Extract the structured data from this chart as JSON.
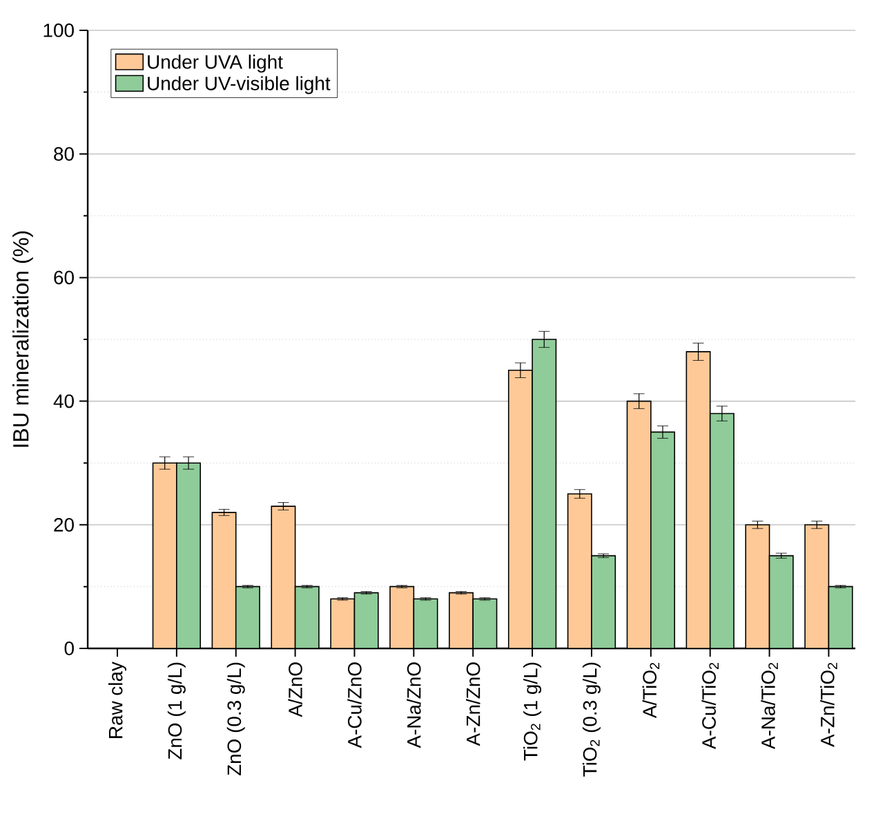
{
  "chart_data": {
    "type": "bar",
    "ylabel": "IBU mineralization (%)",
    "categories": [
      "Raw clay",
      "ZnO (1 g/L)",
      "ZnO (0.3 g/L)",
      "A/ZnO",
      "A-Cu/ZnO",
      "A-Na/ZnO",
      "A-Zn/ZnO",
      "TiO$_{2}$ (1 g/L)",
      "TiO$_{2}$ (0.3 g/L)",
      "A/TiO$_{2}$",
      "A-Cu/TiO$_{2}$",
      "A-Na/TiO$_{2}$",
      "A-Zn/TiO$_{2}$"
    ],
    "series": [
      {
        "name": "Under UVA light",
        "color": "#ffc997",
        "values": [
          0,
          30,
          22,
          23,
          8,
          10,
          9,
          45,
          25,
          40,
          48,
          20,
          20
        ],
        "errors": [
          null,
          1,
          0.5,
          0.6,
          0.2,
          0.2,
          0.2,
          1.2,
          0.7,
          1.2,
          1.4,
          0.6,
          0.6
        ]
      },
      {
        "name": "Under UV-visible light",
        "color": "#8fcc99",
        "values": [
          0,
          30,
          10,
          10,
          9,
          8,
          8,
          50,
          15,
          35,
          38,
          15,
          10
        ],
        "errors": [
          null,
          1,
          0.2,
          0.2,
          0.2,
          0.2,
          0.2,
          1.3,
          0.3,
          1,
          1.2,
          0.4,
          0.2
        ]
      }
    ],
    "ylim": [
      0,
      100
    ],
    "yticks": [
      0,
      {
        "value": 10,
        "label": null
      },
      20,
      {
        "value": 30,
        "label": null
      },
      40,
      {
        "value": 50,
        "label": null
      },
      60,
      {
        "value": 70,
        "label": null
      },
      80,
      {
        "value": 90,
        "label": null
      },
      100
    ],
    "grid": "y",
    "legend": "top left"
  }
}
